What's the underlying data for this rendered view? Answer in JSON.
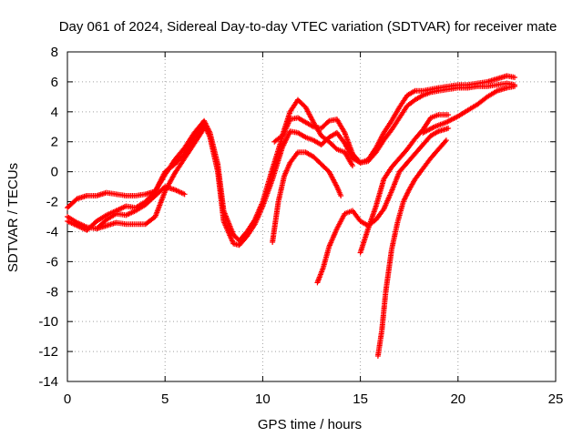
{
  "chart_data": {
    "type": "scatter",
    "title": "Day 061 of 2024, Sidereal Day-to-day VTEC variation (SDTVAR) for receiver mate",
    "xlabel": "GPS time / hours",
    "ylabel": "SDTVAR / TECUs",
    "xlim": [
      0,
      25
    ],
    "ylim": [
      -14,
      8
    ],
    "x_ticks": [
      0,
      5,
      10,
      15,
      20,
      25
    ],
    "y_ticks": [
      -14,
      -12,
      -10,
      -8,
      -6,
      -4,
      -2,
      0,
      2,
      4,
      6,
      8
    ],
    "grid": true,
    "marker": "+",
    "color": "#ff0000",
    "series": [
      {
        "x": [
          0,
          0.5,
          1,
          1.5,
          2,
          2.5,
          3,
          3.5,
          4,
          4.5,
          5,
          5.5,
          6,
          6.5,
          7,
          7.3,
          7.7,
          8,
          8.5,
          8.8,
          9.2,
          9.6,
          10,
          10.5,
          11,
          11.4,
          11.8,
          12.2,
          12.6,
          13,
          13.4,
          13.8,
          14.2,
          14.6,
          15,
          15.4,
          15.8,
          16.2,
          16.6,
          17,
          17.4,
          17.8,
          18.2,
          18.6,
          19,
          19.5,
          20,
          20.5,
          21,
          21.5,
          22,
          22.5,
          22.9
        ],
        "y": [
          -2.4,
          -1.8,
          -1.6,
          -1.6,
          -1.4,
          -1.5,
          -1.6,
          -1.6,
          -1.5,
          -1.3,
          -0.2,
          0.8,
          1.6,
          2.6,
          3.4,
          2.6,
          0.5,
          -2.6,
          -4.2,
          -4.6,
          -4.0,
          -3.2,
          -2.0,
          0.2,
          2.3,
          3.5,
          3.6,
          3.3,
          3.0,
          2.9,
          3.4,
          3.5,
          2.6,
          1.2,
          0.6,
          0.8,
          1.6,
          2.6,
          3.4,
          4.3,
          5.1,
          5.4,
          5.4,
          5.5,
          5.6,
          5.7,
          5.8,
          5.8,
          5.9,
          6.0,
          6.2,
          6.4,
          6.3
        ]
      },
      {
        "x": [
          0,
          0.5,
          1,
          1.5,
          2,
          2.5,
          3,
          3.5,
          4,
          4.5,
          5,
          5.5,
          6,
          6.5,
          7,
          7.3,
          7.7,
          8,
          8.5,
          8.8,
          9.2,
          9.6,
          10,
          10.5,
          11,
          11.4,
          11.8,
          12.2,
          12.6,
          13,
          13.4,
          13.8,
          14.2,
          14.6,
          15,
          15.4,
          15.8,
          16.2,
          16.6,
          17,
          17.4,
          17.8,
          18.2,
          18.6,
          19,
          19.5,
          20,
          20.5,
          21,
          21.5,
          22,
          22.5,
          22.9
        ],
        "y": [
          -3.3,
          -3.6,
          -3.9,
          -3.3,
          -2.9,
          -2.6,
          -2.3,
          -2.4,
          -2.0,
          -1.3,
          0.0,
          0.5,
          1.2,
          2.3,
          3.2,
          2.3,
          0.0,
          -3.3,
          -4.8,
          -4.9,
          -4.3,
          -3.5,
          -2.3,
          -0.5,
          1.6,
          2.7,
          2.6,
          2.3,
          2.1,
          1.8,
          2.3,
          2.6,
          1.9,
          0.9,
          0.6,
          0.7,
          1.3,
          2.1,
          2.8,
          3.6,
          4.4,
          4.8,
          5.1,
          5.3,
          5.4,
          5.5,
          5.6,
          5.6,
          5.7,
          5.7,
          5.8,
          5.9,
          5.8
        ]
      },
      {
        "x": [
          0,
          0.5,
          1,
          1.5,
          2,
          2.5,
          3,
          3.5,
          4,
          4.5,
          5,
          5.5,
          6,
          6.5,
          7
        ],
        "y": [
          -3.0,
          -3.4,
          -3.7,
          -3.8,
          -3.6,
          -3.4,
          -3.5,
          -3.5,
          -3.5,
          -3.0,
          -1.3,
          -0.1,
          0.9,
          1.9,
          2.9
        ]
      },
      {
        "x": [
          1.5,
          2,
          2.5,
          3,
          3.5,
          4,
          4.5,
          5,
          5.5,
          6
        ],
        "y": [
          -3.8,
          -3.2,
          -2.8,
          -2.9,
          -2.6,
          -2.2,
          -1.6,
          -1.0,
          -1.2,
          -1.5
        ]
      },
      {
        "x": [
          10.5,
          10.8,
          11.1,
          11.4,
          11.8,
          12.2,
          12.6,
          13,
          13.4,
          13.8,
          14
        ],
        "y": [
          -4.7,
          -2.0,
          -0.3,
          0.6,
          1.3,
          1.3,
          1.0,
          0.5,
          0.0,
          -1.0,
          -1.6
        ]
      },
      {
        "x": [
          10.6,
          11.0,
          11.4,
          11.8,
          12.2,
          12.6,
          13,
          13.4,
          13.8,
          14.2,
          14.6
        ],
        "y": [
          2.0,
          2.4,
          4.0,
          4.8,
          4.3,
          3.3,
          2.4,
          2.0,
          1.5,
          1.3,
          0.4
        ]
      },
      {
        "x": [
          12.8,
          13.1,
          13.4,
          13.8,
          14.2,
          14.6,
          15.0,
          15.4,
          15.8,
          16.2,
          16.6,
          17,
          17.4,
          17.8,
          18.2,
          18.6,
          19.0,
          19.5
        ],
        "y": [
          -7.4,
          -6.4,
          -5.0,
          -3.8,
          -2.8,
          -2.6,
          -3.3,
          -3.6,
          -3.2,
          -2.5,
          -1.3,
          0.0,
          0.6,
          1.2,
          1.8,
          2.4,
          2.7,
          2.9
        ]
      },
      {
        "x": [
          15.0,
          15.4,
          15.8,
          16.2,
          16.6,
          17,
          17.4,
          17.8,
          18.2,
          18.6,
          19,
          19.5
        ],
        "y": [
          -5.4,
          -3.8,
          -2.3,
          -0.5,
          0.3,
          0.9,
          1.5,
          2.2,
          2.8,
          3.6,
          3.8,
          3.8
        ]
      },
      {
        "x": [
          15.9,
          16.1,
          16.3,
          16.6,
          16.9,
          17.2,
          17.5,
          17.8,
          18.2,
          18.6,
          19.0,
          19.4
        ],
        "y": [
          -12.3,
          -10.6,
          -8.0,
          -5.2,
          -3.4,
          -2.0,
          -1.2,
          -0.5,
          0.2,
          0.9,
          1.5,
          2.1
        ]
      },
      {
        "x": [
          18.2,
          18.8,
          19.4,
          20.0,
          20.5,
          21.0,
          21.5,
          22.0,
          22.5,
          22.9
        ],
        "y": [
          2.6,
          3.0,
          3.3,
          3.7,
          4.1,
          4.5,
          5.0,
          5.4,
          5.6,
          5.7
        ]
      }
    ]
  }
}
